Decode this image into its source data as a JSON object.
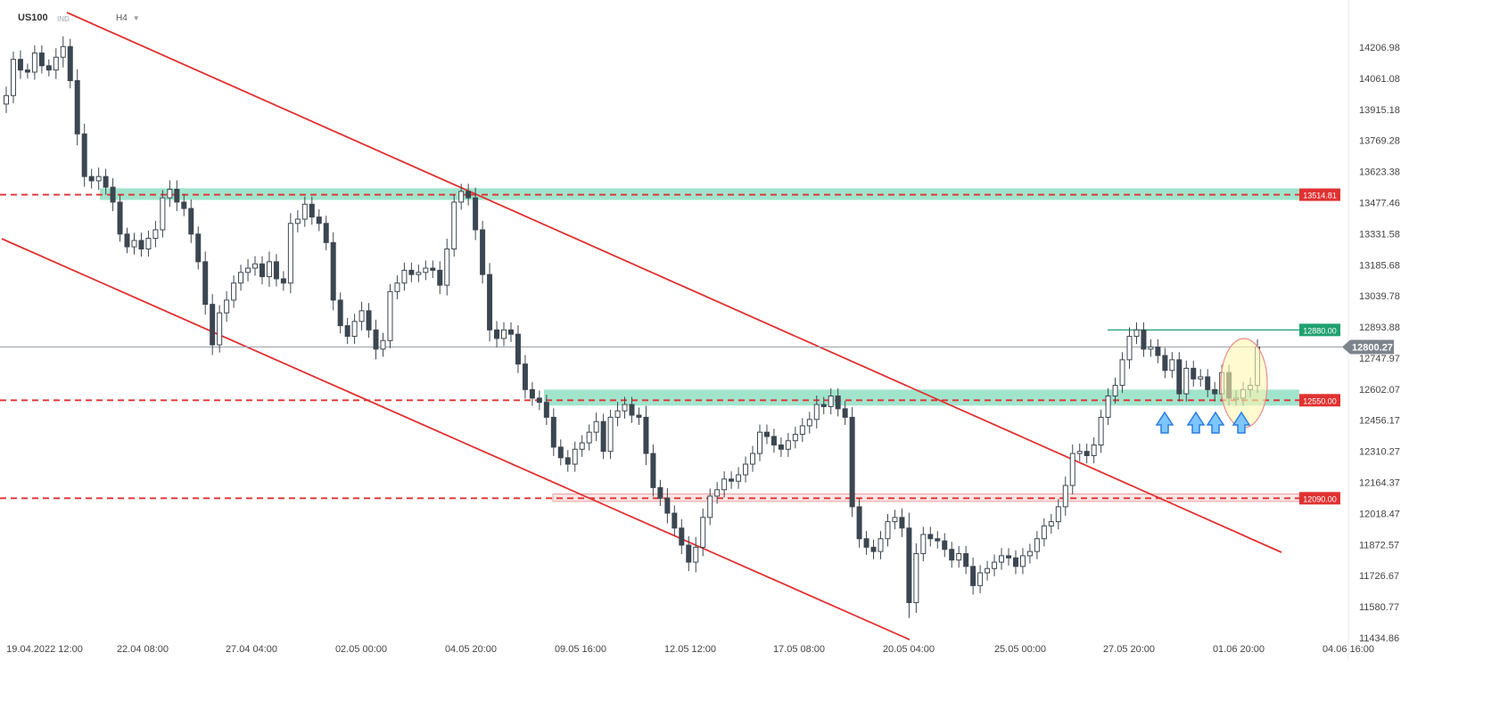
{
  "header": {
    "symbol": "US100",
    "instrument_type": "IND",
    "timeframe": "H4"
  },
  "chart_data": {
    "type": "candlestick",
    "title": "US100",
    "yticks": [
      "14206.98",
      "14061.08",
      "13915.18",
      "13769.28",
      "13623.38",
      "13477.46",
      "13331.58",
      "13185.68",
      "13039.78",
      "12893.88",
      "12747.97",
      "12602.07",
      "12456.17",
      "12310.27",
      "12164.37",
      "12018.47",
      "11872.57",
      "11726.67",
      "11580.77",
      "11434.86"
    ],
    "xticks": [
      "19.04.2022 12:00",
      "22.04 08:00",
      "27.04 04:00",
      "02.05 00:00",
      "04.05 20:00",
      "09.05 16:00",
      "12.05 12:00",
      "17.05 08:00",
      "20.05 04:00",
      "25.05 00:00",
      "27.05 20:00",
      "01.06 20:00",
      "04.06 16:00"
    ],
    "current_price": {
      "label": "12800.27",
      "value": 12800.27
    },
    "levels": [
      {
        "value": 13514.81,
        "label": "13514.81",
        "color": "#e03131",
        "style": "dashed"
      },
      {
        "value": 12880.0,
        "label": "12880.00",
        "color": "#20a070",
        "style": "solid"
      },
      {
        "value": 12550.0,
        "label": "12550.00",
        "color": "#e03131",
        "style": "dashed"
      },
      {
        "value": 12090.0,
        "label": "12090.00",
        "color": "#e03131",
        "style": "dashed"
      }
    ],
    "zones": [
      {
        "from": 13490,
        "to": 13545,
        "color": "#6fd6b0"
      },
      {
        "from": 12525,
        "to": 12600,
        "color": "#6fd6b0"
      },
      {
        "from": 12075,
        "to": 12110,
        "color": "#f6c9c9"
      }
    ],
    "trendlines": [
      {
        "from": [
          "19.04.2022 12:00",
          14290
        ],
        "to": [
          "04.06 16:00",
          11850
        ],
        "color": "#e03131"
      },
      {
        "from": [
          "19.04.2022 12:00",
          13365
        ],
        "to": [
          "20.05 04:00",
          11430
        ],
        "color": "#e03131"
      }
    ],
    "annotations": [
      "up-arrow",
      "up-arrow",
      "up-arrow",
      "up-arrow",
      "highlight-ellipse"
    ],
    "colors": {
      "up": "#ffffff",
      "down": "#3c4650",
      "outline": "#3c4650",
      "level": "#e03131",
      "resistance": "#20a070"
    },
    "closes": [
      13980,
      14150,
      14100,
      14090,
      14180,
      14120,
      14100,
      14160,
      14210,
      14050,
      13800,
      13600,
      13580,
      13600,
      13550,
      13480,
      13330,
      13270,
      13300,
      13260,
      13310,
      13350,
      13500,
      13540,
      13480,
      13450,
      13330,
      13200,
      13000,
      12810,
      12960,
      13020,
      13100,
      13150,
      13170,
      13190,
      13130,
      13200,
      13120,
      13100,
      13380,
      13400,
      13470,
      13410,
      13380,
      13290,
      13020,
      12900,
      12850,
      12920,
      12970,
      12880,
      12790,
      12830,
      13060,
      13100,
      13160,
      13140,
      13150,
      13170,
      13160,
      13090,
      13260,
      13480,
      13530,
      13500,
      13350,
      13140,
      12880,
      12840,
      12880,
      12860,
      12720,
      12600,
      12560,
      12540,
      12470,
      12330,
      12280,
      12250,
      12320,
      12350,
      12400,
      12450,
      12310,
      12470,
      12500,
      12530,
      12480,
      12470,
      12300,
      12140,
      12090,
      12020,
      11950,
      11870,
      11790,
      11860,
      12000,
      12100,
      12130,
      12180,
      12170,
      12200,
      12250,
      12300,
      12400,
      12380,
      12340,
      12320,
      12360,
      12390,
      12430,
      12460,
      12530,
      12520,
      12570,
      12510,
      12470,
      12050,
      11900,
      11860,
      11840,
      11900,
      11980,
      12000,
      11950,
      11600,
      11830,
      11920,
      11900,
      11890,
      11850,
      11800,
      11830,
      11770,
      11680,
      11740,
      11760,
      11790,
      11820,
      11810,
      11770,
      11820,
      11840,
      11900,
      11960,
      11980,
      12050,
      12150,
      12300,
      12310,
      12290,
      12340,
      12470,
      12570,
      12620,
      12740,
      12850,
      12880,
      12790,
      12800,
      12760,
      12690,
      12740,
      12580,
      12700,
      12650,
      12660,
      12600,
      12580,
      12680,
      12560,
      12560,
      12600,
      12620,
      12800
    ],
    "wicks": [
      70,
      60,
      70,
      50,
      60,
      60,
      50,
      70,
      80,
      60,
      90,
      80,
      60,
      70,
      60,
      70,
      60,
      50,
      60,
      60,
      60,
      70,
      60,
      70,
      70,
      60,
      70,
      60,
      80,
      80,
      60,
      70,
      60,
      60,
      70,
      60,
      60,
      80,
      60,
      60,
      80,
      70,
      60,
      60,
      60,
      60,
      80,
      60,
      60,
      60,
      70,
      60,
      80,
      60,
      60,
      60,
      60,
      60,
      60,
      60,
      60,
      70,
      80,
      60,
      60,
      60,
      80,
      70,
      90,
      70,
      60,
      60,
      70,
      70,
      60,
      60,
      60,
      70,
      60,
      60,
      60,
      60,
      60,
      70,
      60,
      60,
      70,
      60,
      60,
      60,
      90,
      70,
      60,
      80,
      60,
      70,
      70,
      80,
      70,
      60,
      60,
      60,
      60,
      60,
      60,
      60,
      60,
      60,
      60,
      60,
      60,
      60,
      60,
      60,
      70,
      60,
      60,
      60,
      60,
      80,
      70,
      60,
      60,
      60,
      60,
      60,
      70,
      120,
      80,
      60,
      60,
      60,
      60,
      60,
      60,
      60,
      70,
      60,
      60,
      60,
      60,
      60,
      60,
      60,
      60,
      60,
      60,
      60,
      60,
      70,
      70,
      60,
      60,
      60,
      60,
      60,
      60,
      60,
      70,
      60,
      60,
      60,
      60,
      60,
      60,
      60,
      60,
      60,
      60,
      60,
      60,
      60,
      60,
      60,
      60,
      60,
      60
    ]
  }
}
